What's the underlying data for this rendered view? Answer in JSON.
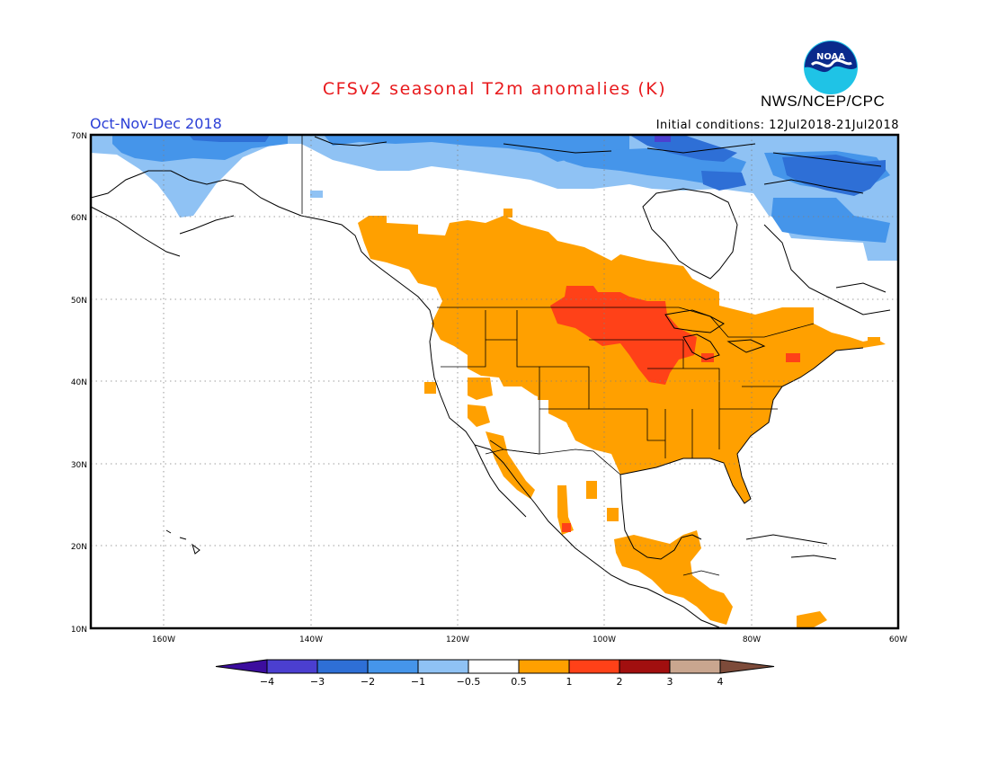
{
  "title": "CFSv2 seasonal T2m anomalies (K)",
  "season": "Oct-Nov-Dec 2018",
  "initial_conditions": "Initial conditions: 12Jul2018-21Jul2018",
  "agency": "NWS/NCEP/CPC",
  "logo_text": "NOAA",
  "lat_labels": [
    "70N",
    "60N",
    "50N",
    "40N",
    "30N",
    "20N",
    "10N"
  ],
  "lon_labels": [
    "160W",
    "140W",
    "120W",
    "100W",
    "80W",
    "60W"
  ],
  "colorbar": {
    "labels": [
      "-4",
      "-3",
      "-2",
      "-1",
      "-0.5",
      "0.5",
      "1",
      "2",
      "3",
      "4"
    ],
    "colors": [
      "#3c0d9e",
      "#4b3fd0",
      "#2e6fd6",
      "#4595ea",
      "#8fc2f4",
      "#ffffff",
      "#ffa000",
      "#ff4118",
      "#a10f0f",
      "#c9a68f",
      "#7d4b3a"
    ]
  },
  "colors": {
    "warm_0_5_1": "#ffa000",
    "warm_1_2": "#ff4118",
    "cold_0_5_1": "#8fc2f4",
    "cold_1_2": "#4595ea",
    "cold_2_3": "#2e6fd6",
    "cold_3_4": "#4b3fd0",
    "title": "#e8191c",
    "season": "#2b3fd6"
  }
}
